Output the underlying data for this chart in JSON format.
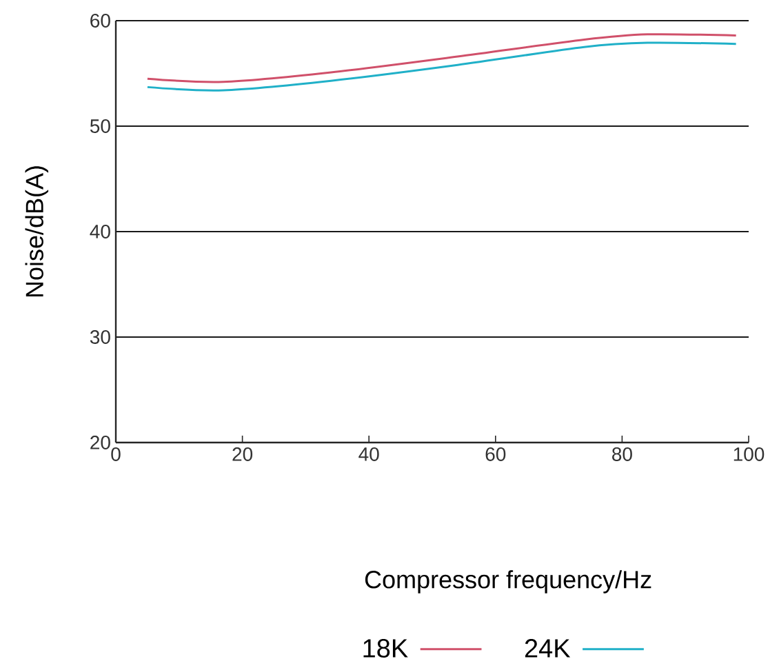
{
  "chart_data": {
    "type": "line",
    "xlabel": "Compressor frequency/Hz",
    "ylabel": "Noise/dB(A)",
    "xlim": [
      0,
      100
    ],
    "xticks": [
      0,
      20,
      40,
      60,
      80,
      100
    ],
    "ylim": [
      20,
      60
    ],
    "yticks": [
      20,
      30,
      40,
      50,
      60
    ],
    "grid": "y",
    "legend": "bottom",
    "marker": "none",
    "line_style": "solid",
    "series": [
      {
        "name": "18K",
        "color": "#d0506a",
        "x": [
          5,
          17,
          34,
          54,
          74,
          84,
          98
        ],
        "values": [
          54.5,
          54.2,
          55.1,
          56.6,
          58.2,
          58.7,
          58.6
        ]
      },
      {
        "name": "24K",
        "color": "#20b0c8",
        "x": [
          5,
          17,
          34,
          54,
          74,
          84,
          98
        ],
        "values": [
          53.7,
          53.4,
          54.3,
          55.8,
          57.5,
          57.9,
          57.8
        ]
      }
    ]
  }
}
